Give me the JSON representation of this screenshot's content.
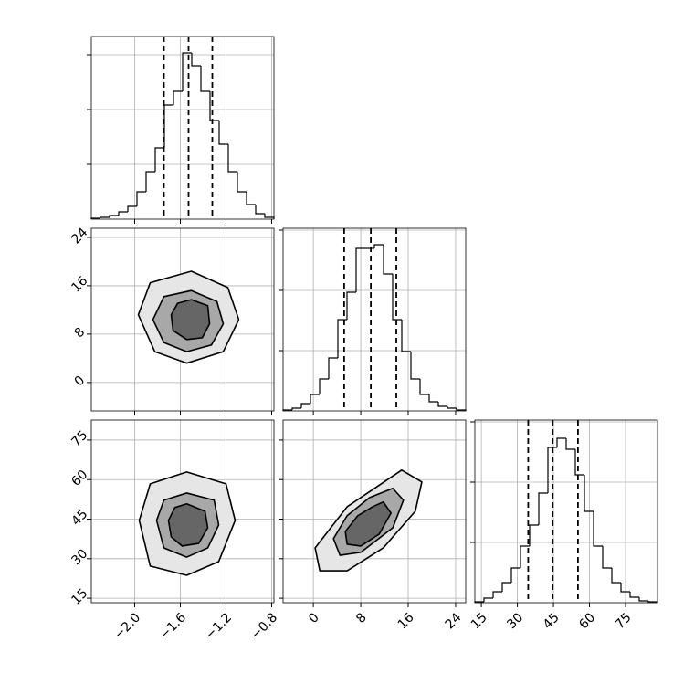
{
  "chart_data": [
    {
      "type": "histogram",
      "xlim": [
        -2.38,
        -0.78
      ],
      "ylim": [
        0,
        200
      ],
      "bins": [
        -2.38,
        -2.3,
        -2.22,
        -2.14,
        -2.06,
        -1.98,
        -1.9,
        -1.82,
        -1.74,
        -1.66,
        -1.58,
        -1.5,
        -1.42,
        -1.34,
        -1.26,
        -1.18,
        -1.1,
        -1.02,
        -0.94,
        -0.86,
        -0.78
      ],
      "counts": [
        1,
        2,
        4,
        8,
        14,
        30,
        52,
        78,
        125,
        140,
        182,
        168,
        140,
        108,
        82,
        52,
        30,
        16,
        6,
        2
      ],
      "quantiles": [
        -1.744,
        -1.528,
        -1.32
      ],
      "xticks": [
        {
          "value": -2.0,
          "label": "−2.0"
        },
        {
          "value": -1.6,
          "label": "−1.6"
        },
        {
          "value": -1.2,
          "label": "−1.2"
        },
        {
          "value": -0.8,
          "label": "−0.8"
        }
      ],
      "yticks": [
        60,
        120,
        180
      ],
      "xtick_labels": false,
      "ytick_labels": false,
      "grid": true,
      "color": "#000000"
    },
    {
      "type": "contour",
      "xlim": [
        -2.38,
        -0.78
      ],
      "ylim": [
        -4.7,
        25.5
      ],
      "contours": [
        {
          "x": [
            -1.504,
            -1.184,
            -1.088,
            -1.224,
            -1.544,
            -1.824,
            -1.968,
            -1.864
          ],
          "y": [
            18.4,
            15.7,
            10.4,
            5.1,
            3.2,
            5.1,
            11.2,
            16.5
          ]
        },
        {
          "x": [
            -1.504,
            -1.28,
            -1.224,
            -1.328,
            -1.544,
            -1.744,
            -1.84,
            -1.744
          ],
          "y": [
            15.2,
            13.4,
            9.7,
            6.2,
            5.1,
            6.6,
            10.4,
            14.2
          ]
        },
        {
          "x": [
            -1.504,
            -1.36,
            -1.344,
            -1.408,
            -1.544,
            -1.664,
            -1.68,
            -1.624
          ],
          "y": [
            13.7,
            12.7,
            9.7,
            7.4,
            7.1,
            8.6,
            11.2,
            13.1
          ]
        }
      ],
      "xticks": [
        {
          "value": -2.0,
          "label": "−2.0"
        },
        {
          "value": -1.6,
          "label": "−1.6"
        },
        {
          "value": -1.2,
          "label": "−1.2"
        },
        {
          "value": -0.8,
          "label": "−0.8"
        }
      ],
      "yticks": [
        0,
        8,
        16,
        24
      ],
      "xtick_labels": false,
      "ytick_labels": true,
      "grid": true
    },
    {
      "type": "histogram",
      "xlim": [
        -5.1,
        25.7
      ],
      "ylim": [
        0,
        200
      ],
      "bins": [
        -5.1,
        -3.56,
        -2.02,
        -0.48,
        1.06,
        2.6,
        4.14,
        5.68,
        7.22,
        8.76,
        10.3,
        11.84,
        13.38,
        14.92,
        16.46,
        18,
        19.54,
        21.08,
        22.62,
        24.16,
        25.7
      ],
      "counts": [
        1,
        3,
        8,
        18,
        35,
        58,
        100,
        130,
        178,
        178,
        182,
        150,
        100,
        65,
        35,
        18,
        10,
        5,
        3,
        1
      ],
      "quantiles": [
        5.2,
        9.7,
        14.0
      ],
      "xticks": [
        0,
        8,
        16,
        24
      ],
      "yticks": [
        66,
        132,
        198
      ],
      "xtick_labels": false,
      "ytick_labels": false,
      "grid": true,
      "color": "#000000"
    },
    {
      "type": "contour",
      "xlim": [
        -2.38,
        -0.78
      ],
      "ylim": [
        13.3,
        82.6
      ],
      "contours": [
        {
          "x": [
            -1.544,
            -1.2,
            -1.12,
            -1.264,
            -1.544,
            -1.864,
            -1.96,
            -1.864
          ],
          "y": [
            62.9,
            58.4,
            44.5,
            28.9,
            23.7,
            27.2,
            44.5,
            58.4
          ]
        },
        {
          "x": [
            -1.544,
            -1.304,
            -1.264,
            -1.36,
            -1.544,
            -1.744,
            -1.808,
            -1.744
          ],
          "y": [
            54.9,
            52.2,
            42.8,
            34.1,
            30.6,
            34.1,
            44.5,
            52.2
          ]
        },
        {
          "x": [
            -1.544,
            -1.384,
            -1.36,
            -1.44,
            -1.584,
            -1.68,
            -1.704,
            -1.648
          ],
          "y": [
            50.8,
            48.0,
            41.7,
            35.8,
            34.8,
            38.3,
            44.5,
            49.4
          ]
        }
      ],
      "xticks": [
        {
          "value": -2.0,
          "label": "−2.0"
        },
        {
          "value": -1.6,
          "label": "−1.6"
        },
        {
          "value": -1.2,
          "label": "−1.2"
        },
        {
          "value": -0.8,
          "label": "−0.8"
        }
      ],
      "yticks": [
        15,
        30,
        45,
        60,
        75
      ],
      "xtick_labels": true,
      "ytick_labels": true,
      "grid": true
    },
    {
      "type": "contour",
      "xlim": [
        -5.1,
        25.7
      ],
      "ylim": [
        13.3,
        82.6
      ],
      "contours": [
        {
          "x": [
            14.9,
            18.3,
            17.2,
            11.8,
            5.7,
            1.1,
            0.3,
            5.7
          ],
          "y": [
            63.6,
            59.1,
            48.0,
            34.1,
            25.4,
            25.4,
            34.1,
            49.7
          ]
        },
        {
          "x": [
            13.4,
            15.2,
            13.4,
            8.0,
            4.5,
            3.4,
            5.7,
            9.5
          ],
          "y": [
            56.7,
            52.2,
            41.7,
            32.4,
            31.3,
            37.6,
            46.3,
            53.2
          ]
        },
        {
          "x": [
            11.8,
            13.1,
            11.1,
            8.0,
            5.7,
            5.4,
            7.5,
            10.0
          ],
          "y": [
            51.5,
            47.3,
            39.3,
            34.8,
            35.5,
            40.3,
            46.3,
            49.7
          ]
        }
      ],
      "xticks": [
        0,
        8,
        16,
        24
      ],
      "yticks": [
        15,
        30,
        45,
        60,
        75
      ],
      "xtick_labels": true,
      "ytick_labels": false,
      "grid": true
    },
    {
      "type": "histogram",
      "xlim": [
        12.3,
        88.3
      ],
      "ylim": [
        0,
        200
      ],
      "bins": [
        12.3,
        16.1,
        19.9,
        23.7,
        27.5,
        31.3,
        35.1,
        38.9,
        42.7,
        46.5,
        50.3,
        54.1,
        57.9,
        61.7,
        65.5,
        69.3,
        73.1,
        76.9,
        80.7,
        84.5,
        88.3
      ],
      "counts": [
        1,
        5,
        12,
        22,
        38,
        62,
        85,
        120,
        170,
        180,
        168,
        140,
        100,
        62,
        38,
        22,
        12,
        6,
        2,
        1
      ],
      "quantiles": [
        34.5,
        44.7,
        55.2
      ],
      "xticks": [
        15,
        30,
        45,
        60,
        75
      ],
      "yticks": [
        66,
        132,
        198
      ],
      "xtick_labels": true,
      "ytick_labels": false,
      "grid": true,
      "color": "#000000"
    }
  ]
}
